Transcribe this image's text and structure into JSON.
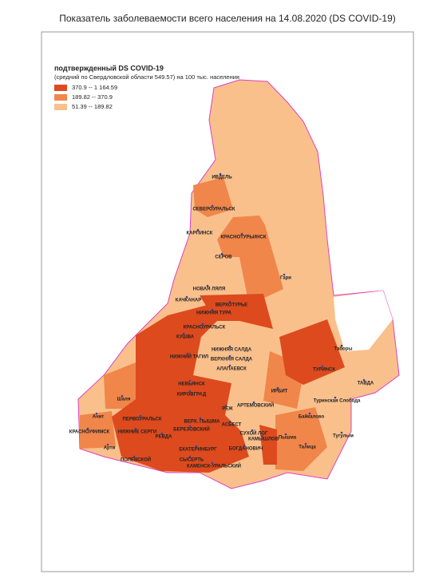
{
  "title": "Показатель заболеваемости всего населения  на 14.08.2020 (DS  COVID-19)",
  "legend": {
    "heading": "подтвержденный DS  COVID-19",
    "subheading": "(средний по Свердловской области 549.57) на 100 тыс. населения",
    "entries": [
      "370.9   -- 1 164.59",
      "189.82 --    370.9",
      "51.39 --     189.82"
    ]
  },
  "places": [
    "ИВДЕЛЬ",
    "СЕВЕРОУРАЛЬСК",
    "КАРПИНСК",
    "КРАСНОТУРЬИНСК",
    "СЕРОВ",
    "Гари",
    "НОВАЯ ЛЯЛЯ",
    "КАЧКАНАР",
    "ВЕРХОТУРЬЕ",
    "НИЖНЯЯ ТУРА",
    "КРАСНОУРАЛЬСК",
    "КУШВА",
    "НИЖНИЙ ТАГИЛ",
    "НИЖНЯЯ САЛДА",
    "ВЕРХНЯЯ САЛДА",
    "АЛАПАЕВСК",
    "Таборы",
    "ТУРИНСК",
    "ТАВДА",
    "НЕВЬЯНСК",
    "КИРОВГРАД",
    "Шаля",
    "РЕЖ",
    "ИРБИТ",
    "АРТЕМОВСКИЙ",
    "Туринская Слобода",
    "Ачит",
    "ПЕРВОУРАЛЬСК",
    "ВЕРХ. ПЫШМА",
    "АСБЕСТ",
    "Байкалово",
    "КРАСНОУФИМСК",
    "НИЖНИЕ СЕРГИ",
    "БЕРЕЗОВСКИЙ",
    "РЕВДА",
    "СУХОЙ ЛОГ",
    "Тугулым",
    "Арти",
    "ЕКАТЕРИНБУРГ",
    "Пышма",
    "КАМЫШЛОВ",
    "ПОЛЕВСКОЙ",
    "СЫСЕРТЬ",
    "БОГДАНОВИЧ",
    "Талица",
    "КАМЕНСК-УРАЛЬСКИЙ"
  ]
}
